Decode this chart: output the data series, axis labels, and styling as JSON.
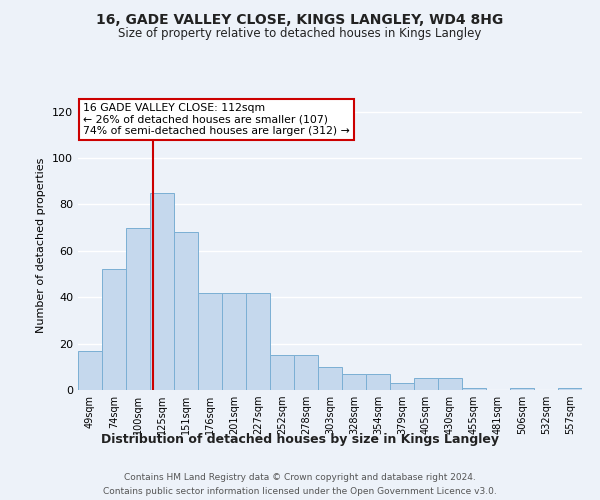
{
  "title": "16, GADE VALLEY CLOSE, KINGS LANGLEY, WD4 8HG",
  "subtitle": "Size of property relative to detached houses in Kings Langley",
  "xlabel": "Distribution of detached houses by size in Kings Langley",
  "ylabel": "Number of detached properties",
  "categories": [
    "49sqm",
    "74sqm",
    "100sqm",
    "125sqm",
    "151sqm",
    "176sqm",
    "201sqm",
    "227sqm",
    "252sqm",
    "278sqm",
    "303sqm",
    "328sqm",
    "354sqm",
    "379sqm",
    "405sqm",
    "430sqm",
    "455sqm",
    "481sqm",
    "506sqm",
    "532sqm",
    "557sqm"
  ],
  "values": [
    17,
    52,
    70,
    85,
    68,
    42,
    42,
    42,
    15,
    15,
    10,
    7,
    7,
    3,
    5,
    5,
    1,
    0,
    1,
    0,
    1
  ],
  "bar_color": "#c5d8ed",
  "bar_edge_color": "#7bafd4",
  "background_color": "#edf2f9",
  "grid_color": "#ffffff",
  "annotation_text_line1": "16 GADE VALLEY CLOSE: 112sqm",
  "annotation_text_line2": "← 26% of detached houses are smaller (107)",
  "annotation_text_line3": "74% of semi-detached houses are larger (312) →",
  "annotation_box_facecolor": "#ffffff",
  "annotation_box_edgecolor": "#cc0000",
  "vline_color": "#cc0000",
  "vline_x": 2.62,
  "ylim": [
    0,
    125
  ],
  "yticks": [
    0,
    20,
    40,
    60,
    80,
    100,
    120
  ],
  "footer1": "Contains HM Land Registry data © Crown copyright and database right 2024.",
  "footer2": "Contains public sector information licensed under the Open Government Licence v3.0."
}
